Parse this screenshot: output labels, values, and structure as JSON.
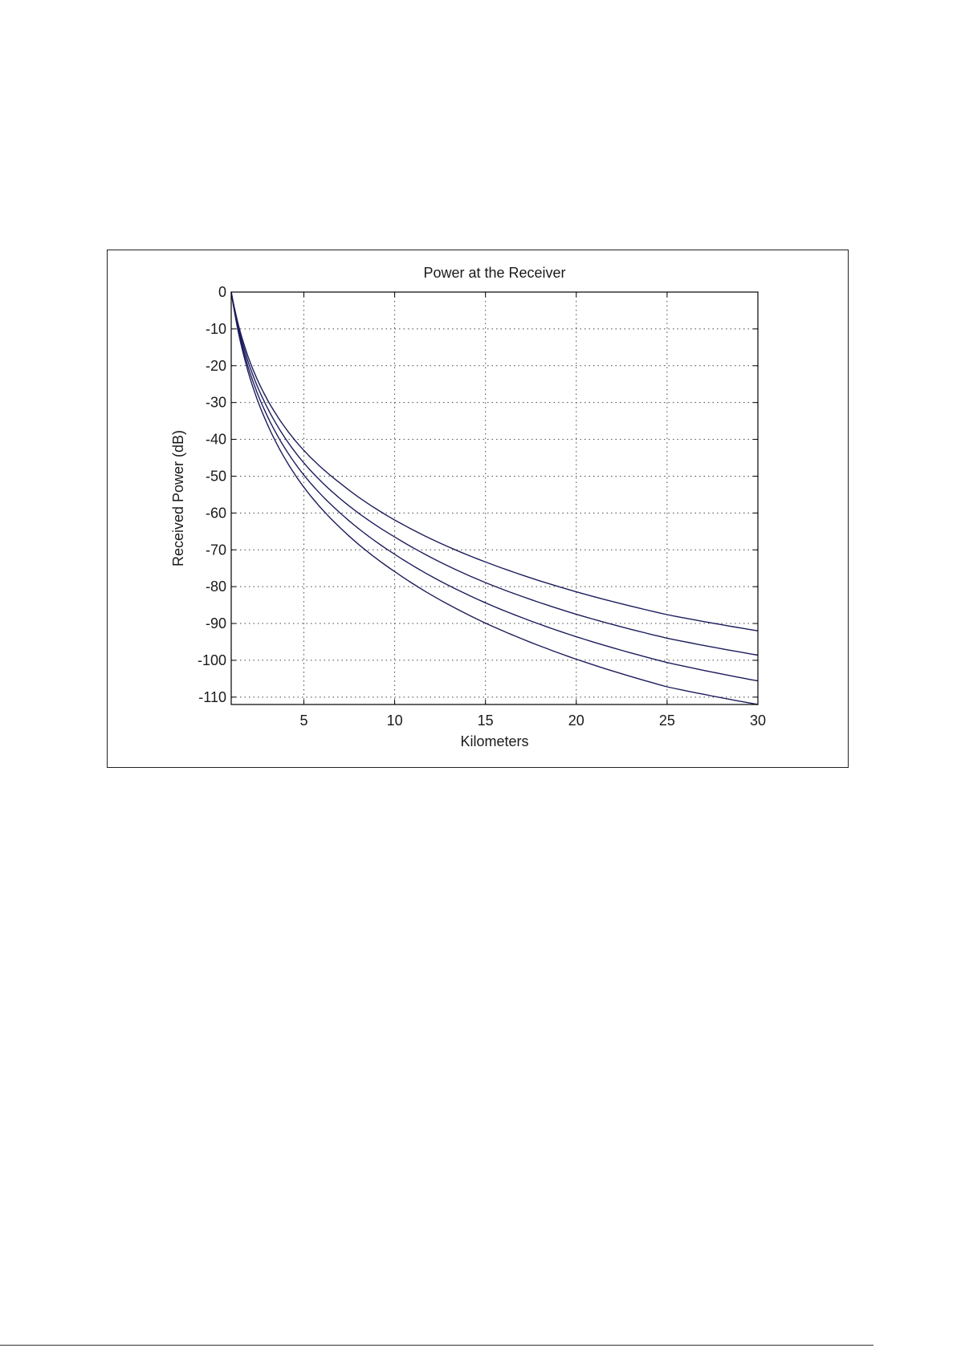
{
  "colors": {
    "line": "#1c1c5c",
    "grid": "#444444",
    "axes": "#000000",
    "frame": "#222222"
  },
  "chart_data": {
    "type": "line",
    "title": "Power at the Receiver",
    "xlabel": "Kilometers",
    "ylabel": "Received Power (dB)",
    "xlim": [
      1,
      30
    ],
    "ylim": [
      -112,
      0
    ],
    "xticks": [
      5,
      10,
      15,
      20,
      25,
      30
    ],
    "yticks": [
      0,
      -10,
      -20,
      -30,
      -40,
      -50,
      -60,
      -70,
      -80,
      -90,
      -100,
      -110
    ],
    "grid": true,
    "grid_style": "dotted",
    "series": [
      {
        "x": [
          1,
          2,
          3,
          5,
          7,
          10,
          15,
          20,
          25,
          30
        ],
        "y": [
          0,
          -18.5,
          -29.3,
          -43.0,
          -51.9,
          -61.9,
          -73.3,
          -81.4,
          -87.6,
          -92.0
        ]
      },
      {
        "x": [
          1,
          2,
          3,
          5,
          7,
          10,
          15,
          20,
          25,
          30
        ],
        "y": [
          0,
          -19.9,
          -31.5,
          -46.4,
          -56.1,
          -66.5,
          -78.9,
          -87.5,
          -94.0,
          -98.6
        ]
      },
      {
        "x": [
          1,
          2,
          3,
          5,
          7,
          10,
          15,
          20,
          25,
          30
        ],
        "y": [
          0,
          -21.4,
          -33.8,
          -49.7,
          -60.0,
          -71.2,
          -84.4,
          -93.6,
          -100.6,
          -105.6
        ]
      },
      {
        "x": [
          1,
          2,
          3,
          5,
          7,
          10,
          15,
          20,
          25,
          30
        ],
        "y": [
          0,
          -22.8,
          -36.0,
          -53.0,
          -64.0,
          -75.9,
          -89.9,
          -99.7,
          -107.2,
          -112.0
        ]
      }
    ]
  }
}
